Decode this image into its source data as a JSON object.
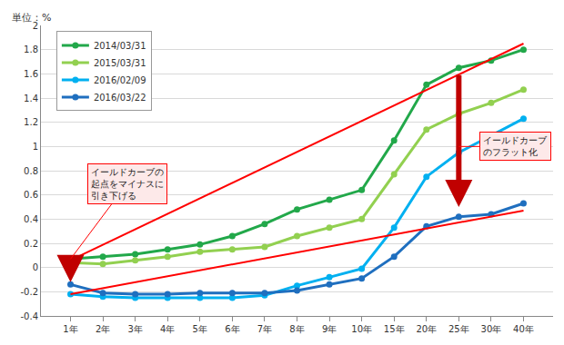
{
  "chart_data": {
    "type": "line",
    "y_label": "単位：%",
    "categories": [
      "1年",
      "2年",
      "3年",
      "4年",
      "5年",
      "6年",
      "7年",
      "8年",
      "9年",
      "10年",
      "15年",
      "20年",
      "25年",
      "30年",
      "40年"
    ],
    "series": [
      {
        "name": "2014/03/31",
        "color": "#22a84a",
        "values": [
          0.07,
          0.09,
          0.11,
          0.15,
          0.19,
          0.26,
          0.36,
          0.48,
          0.56,
          0.64,
          1.05,
          1.51,
          1.65,
          1.71,
          1.8
        ]
      },
      {
        "name": "2015/03/31",
        "color": "#92d050",
        "values": [
          0.04,
          0.03,
          0.06,
          0.09,
          0.13,
          0.15,
          0.17,
          0.26,
          0.33,
          0.4,
          0.77,
          1.14,
          1.27,
          1.36,
          1.47
        ]
      },
      {
        "name": "2016/02/09",
        "color": "#00b0f0",
        "values": [
          -0.22,
          -0.24,
          -0.25,
          -0.25,
          -0.25,
          -0.25,
          -0.23,
          -0.15,
          -0.08,
          -0.01,
          0.33,
          0.75,
          0.95,
          1.09,
          1.23
        ]
      },
      {
        "name": "2016/03/22",
        "color": "#1f6fbf",
        "values": [
          -0.14,
          -0.21,
          -0.22,
          -0.22,
          -0.21,
          -0.21,
          -0.21,
          -0.19,
          -0.14,
          -0.09,
          0.09,
          0.34,
          0.42,
          0.44,
          0.53
        ]
      }
    ],
    "ylim": [
      -0.4,
      2
    ],
    "yticks": [
      -0.4,
      -0.2,
      0,
      0.2,
      0.4,
      0.6,
      0.8,
      1,
      1.2,
      1.4,
      1.6,
      1.8,
      2
    ],
    "grid": true,
    "legend": "upper left",
    "marker": "circle",
    "lines": [
      {
        "color": "#ff0000",
        "x": [
          "1年",
          "40年"
        ],
        "values": [
          0.06,
          1.85
        ]
      },
      {
        "color": "#ff0000",
        "x": [
          "1年",
          "40年"
        ],
        "values": [
          -0.22,
          0.47
        ]
      }
    ],
    "arrows": [
      {
        "color": "#c00000",
        "x": "1年",
        "from": 0.0,
        "to": -0.12
      },
      {
        "color": "#c00000",
        "x": "25年",
        "from": 1.6,
        "to": 0.5
      }
    ],
    "annotations": [
      {
        "text": "イールドカーブの\n起点をマイナスに\n引き下げる",
        "x": "1年",
        "y": 0.07
      },
      {
        "text": "イールドカーブ\nのフラット化",
        "x": "25年",
        "y": 1.0
      }
    ]
  }
}
